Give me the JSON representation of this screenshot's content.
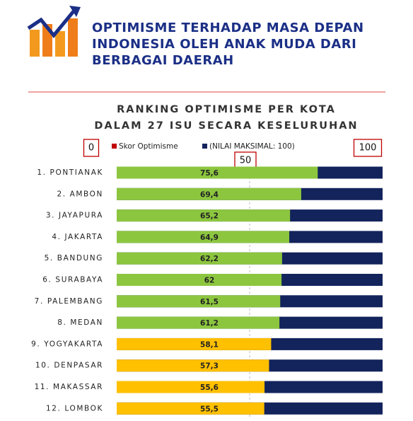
{
  "header": {
    "title_lines": [
      "OPTIMISME TERHADAP MASA DEPAN",
      "INDONESIA OLEH ANAK MUDA DARI",
      "BERBAGAI DAERAH"
    ]
  },
  "chart_data": {
    "type": "bar",
    "orientation": "horizontal",
    "title_lines": [
      "RANKING OPTIMISME PER KOTA",
      "DALAM 27 ISU SECARA KESELURUHAN"
    ],
    "categories": [
      "1. PONTIANAK",
      "2. AMBON",
      "3. JAYAPURA",
      "4. JAKARTA",
      "5. BANDUNG",
      "6. SURABAYA",
      "7. PALEMBANG",
      "8. MEDAN",
      "9. YOGYAKARTA",
      "10. DENPASAR",
      "11. MAKASSAR",
      "12. LOMBOK"
    ],
    "series": [
      {
        "name": "Skor Optimisme",
        "color": "#c00000",
        "values": [
          75.6,
          69.4,
          65.2,
          64.9,
          62.2,
          62,
          61.5,
          61.2,
          58.1,
          57.3,
          55.6,
          55.5
        ],
        "value_labels": [
          "75,6",
          "69,4",
          "65,2",
          "64,9",
          "62,2",
          "62",
          "61,5",
          "61,2",
          "58,1",
          "57,3",
          "55,6",
          "55,5"
        ],
        "colors": [
          "#8cc63f",
          "#8cc63f",
          "#8cc63f",
          "#8cc63f",
          "#8cc63f",
          "#8cc63f",
          "#8cc63f",
          "#8cc63f",
          "#ffc000",
          "#ffc000",
          "#ffc000",
          "#ffc000"
        ]
      },
      {
        "name": "(NILAI MAKSIMAL: 100)",
        "color": "#13235c",
        "values": [
          100,
          100,
          100,
          100,
          100,
          100,
          100,
          100,
          100,
          100,
          100,
          100
        ]
      }
    ],
    "xlim": [
      0,
      100
    ],
    "xticks": [
      0,
      50,
      100
    ]
  }
}
